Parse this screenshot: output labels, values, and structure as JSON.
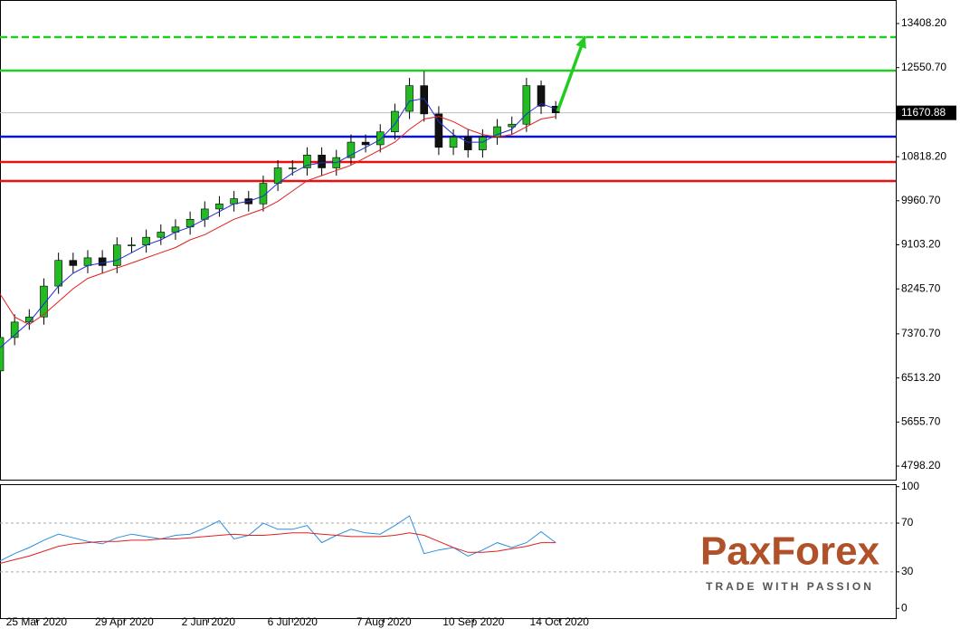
{
  "chart_data": [
    {
      "type": "candlestick",
      "x": [
        0,
        4,
        8,
        12,
        16,
        20,
        24,
        28,
        32,
        36,
        40,
        44,
        48,
        52,
        56,
        60,
        64,
        68,
        72,
        76,
        80,
        84,
        88,
        92,
        96,
        100,
        104,
        108,
        112,
        116,
        120,
        124,
        128,
        132,
        136,
        140,
        144,
        148,
        152
      ],
      "open": [
        6650,
        7300,
        7600,
        7700,
        8300,
        8800,
        8700,
        8850,
        8700,
        9100,
        9100,
        9250,
        9350,
        9450,
        9600,
        9800,
        9900,
        10000,
        9900,
        10300,
        10600,
        10600,
        10850,
        10600,
        10800,
        11100,
        11050,
        11300,
        11700,
        12200,
        11650,
        11000,
        11200,
        10950,
        11200,
        11400,
        11450,
        12200,
        11800
      ],
      "high": [
        7450,
        7750,
        7850,
        8450,
        8950,
        8950,
        9000,
        9000,
        9250,
        9250,
        9400,
        9500,
        9600,
        9750,
        9950,
        10050,
        10150,
        10150,
        10450,
        10750,
        10750,
        11000,
        11000,
        10950,
        11250,
        11250,
        11450,
        11850,
        12350,
        12480,
        11800,
        11350,
        11350,
        11350,
        11550,
        11600,
        12350,
        12300,
        11900
      ],
      "low": [
        6500,
        7150,
        7450,
        7550,
        8150,
        8550,
        8550,
        8550,
        8550,
        8950,
        8950,
        9100,
        9200,
        9300,
        9450,
        9650,
        9750,
        9750,
        9750,
        10150,
        10450,
        10450,
        10450,
        10450,
        10650,
        10900,
        10900,
        11150,
        11550,
        11500,
        10850,
        10850,
        10800,
        10800,
        11050,
        11250,
        11300,
        11650,
        11550
      ],
      "close": [
        7300,
        7600,
        7700,
        8300,
        8800,
        8700,
        8850,
        8700,
        9100,
        9100,
        9250,
        9350,
        9450,
        9600,
        9800,
        9900,
        10000,
        9900,
        10300,
        10600,
        10600,
        10850,
        10600,
        10800,
        11100,
        11050,
        11300,
        11700,
        12200,
        11650,
        11000,
        11200,
        10950,
        11200,
        11400,
        11450,
        12200,
        11800,
        11671
      ],
      "up_color": "#22bb22",
      "down_color": "#111111",
      "series": [
        {
          "color": "#1f2fd0",
          "values": [
            7100,
            7350,
            7600,
            7950,
            8300,
            8550,
            8700,
            8750,
            8800,
            8950,
            9100,
            9200,
            9350,
            9450,
            9600,
            9750,
            9900,
            9950,
            10050,
            10300,
            10500,
            10650,
            10700,
            10700,
            10850,
            11000,
            11150,
            11450,
            11900,
            11950,
            11500,
            11250,
            11100,
            11100,
            11250,
            11350,
            11650,
            11850,
            11750
          ]
        },
        {
          "color": "#e02020",
          "values": [
            8150,
            7700,
            7550,
            7750,
            8000,
            8250,
            8450,
            8550,
            8650,
            8750,
            8850,
            8950,
            9050,
            9200,
            9300,
            9450,
            9600,
            9700,
            9800,
            9950,
            10150,
            10350,
            10450,
            10550,
            10650,
            10800,
            10950,
            11100,
            11350,
            11550,
            11600,
            11500,
            11350,
            11250,
            11200,
            11250,
            11400,
            11550,
            11600
          ]
        }
      ],
      "levels": [
        {
          "value": 13144,
          "color": "#22cc22",
          "dashed": true
        },
        {
          "value": 12493,
          "color": "#22cc22",
          "dashed": false
        },
        {
          "value": 11207,
          "color": "#0a14c8",
          "dashed": false
        },
        {
          "value": 10714,
          "color": "#e81010",
          "dashed": false
        },
        {
          "value": 10344,
          "color": "#e81010",
          "dashed": false
        }
      ],
      "last_price": 11670.88,
      "arrow": {
        "x": [
          152.5,
          160
        ],
        "y": [
          11700,
          13162
        ],
        "color": "#22cc22"
      },
      "xlim": [
        0,
        245
      ],
      "xticks": [
        {
          "value": 10,
          "label": "25 Mar 2020"
        },
        {
          "value": 34,
          "label": "29 Apr 2020"
        },
        {
          "value": 57,
          "label": "2 Jun 2020"
        },
        {
          "value": 80,
          "label": "6 Jul 2020"
        },
        {
          "value": 105,
          "label": "7 Aug 2020"
        },
        {
          "value": 129.5,
          "label": "10 Sep 2020"
        },
        {
          "value": 153,
          "label": "14 Oct 2020"
        }
      ],
      "ylim": [
        4534,
        13866
      ],
      "yticks": [
        {
          "value": 13408.2,
          "label": "13408.20"
        },
        {
          "value": 12550.7,
          "label": "12550.70"
        },
        {
          "value": 10818.2,
          "label": "10818.20"
        },
        {
          "value": 9960.7,
          "label": "9960.70"
        },
        {
          "value": 9103.2,
          "label": "9103.20"
        },
        {
          "value": 8245.7,
          "label": "8245.70"
        },
        {
          "value": 7370.7,
          "label": "7370.70"
        },
        {
          "value": 6513.2,
          "label": "6513.20"
        },
        {
          "value": 5655.7,
          "label": "5655.70"
        },
        {
          "value": 4798.2,
          "label": "4798.20"
        }
      ]
    },
    {
      "type": "line",
      "series": [
        {
          "color": "#2a8ee0",
          "values": [
            39,
            45,
            50,
            56,
            61,
            58,
            55,
            53,
            58,
            61,
            59,
            57,
            60,
            61,
            66,
            72,
            57,
            60,
            70,
            65,
            65,
            68,
            54,
            60,
            65,
            62,
            61,
            68,
            76,
            45,
            48,
            50,
            43,
            48,
            54,
            50,
            54,
            63,
            54
          ]
        },
        {
          "color": "#e02020",
          "values": [
            37,
            40,
            43,
            47,
            51,
            53,
            54,
            55,
            55,
            56,
            56,
            57,
            57,
            58,
            59,
            60,
            61,
            60,
            60,
            61,
            62,
            62,
            61,
            60,
            59,
            59,
            59,
            60,
            62,
            60,
            55,
            50,
            46,
            46,
            47,
            49,
            51,
            54,
            54
          ]
        }
      ],
      "levels": [
        70,
        30
      ],
      "ylim": [
        -8,
        102
      ],
      "yticks": [
        100,
        70,
        30,
        0
      ]
    }
  ],
  "logo": {
    "name": "PaxForex",
    "tagline": "TRADE WITH PASSION"
  }
}
